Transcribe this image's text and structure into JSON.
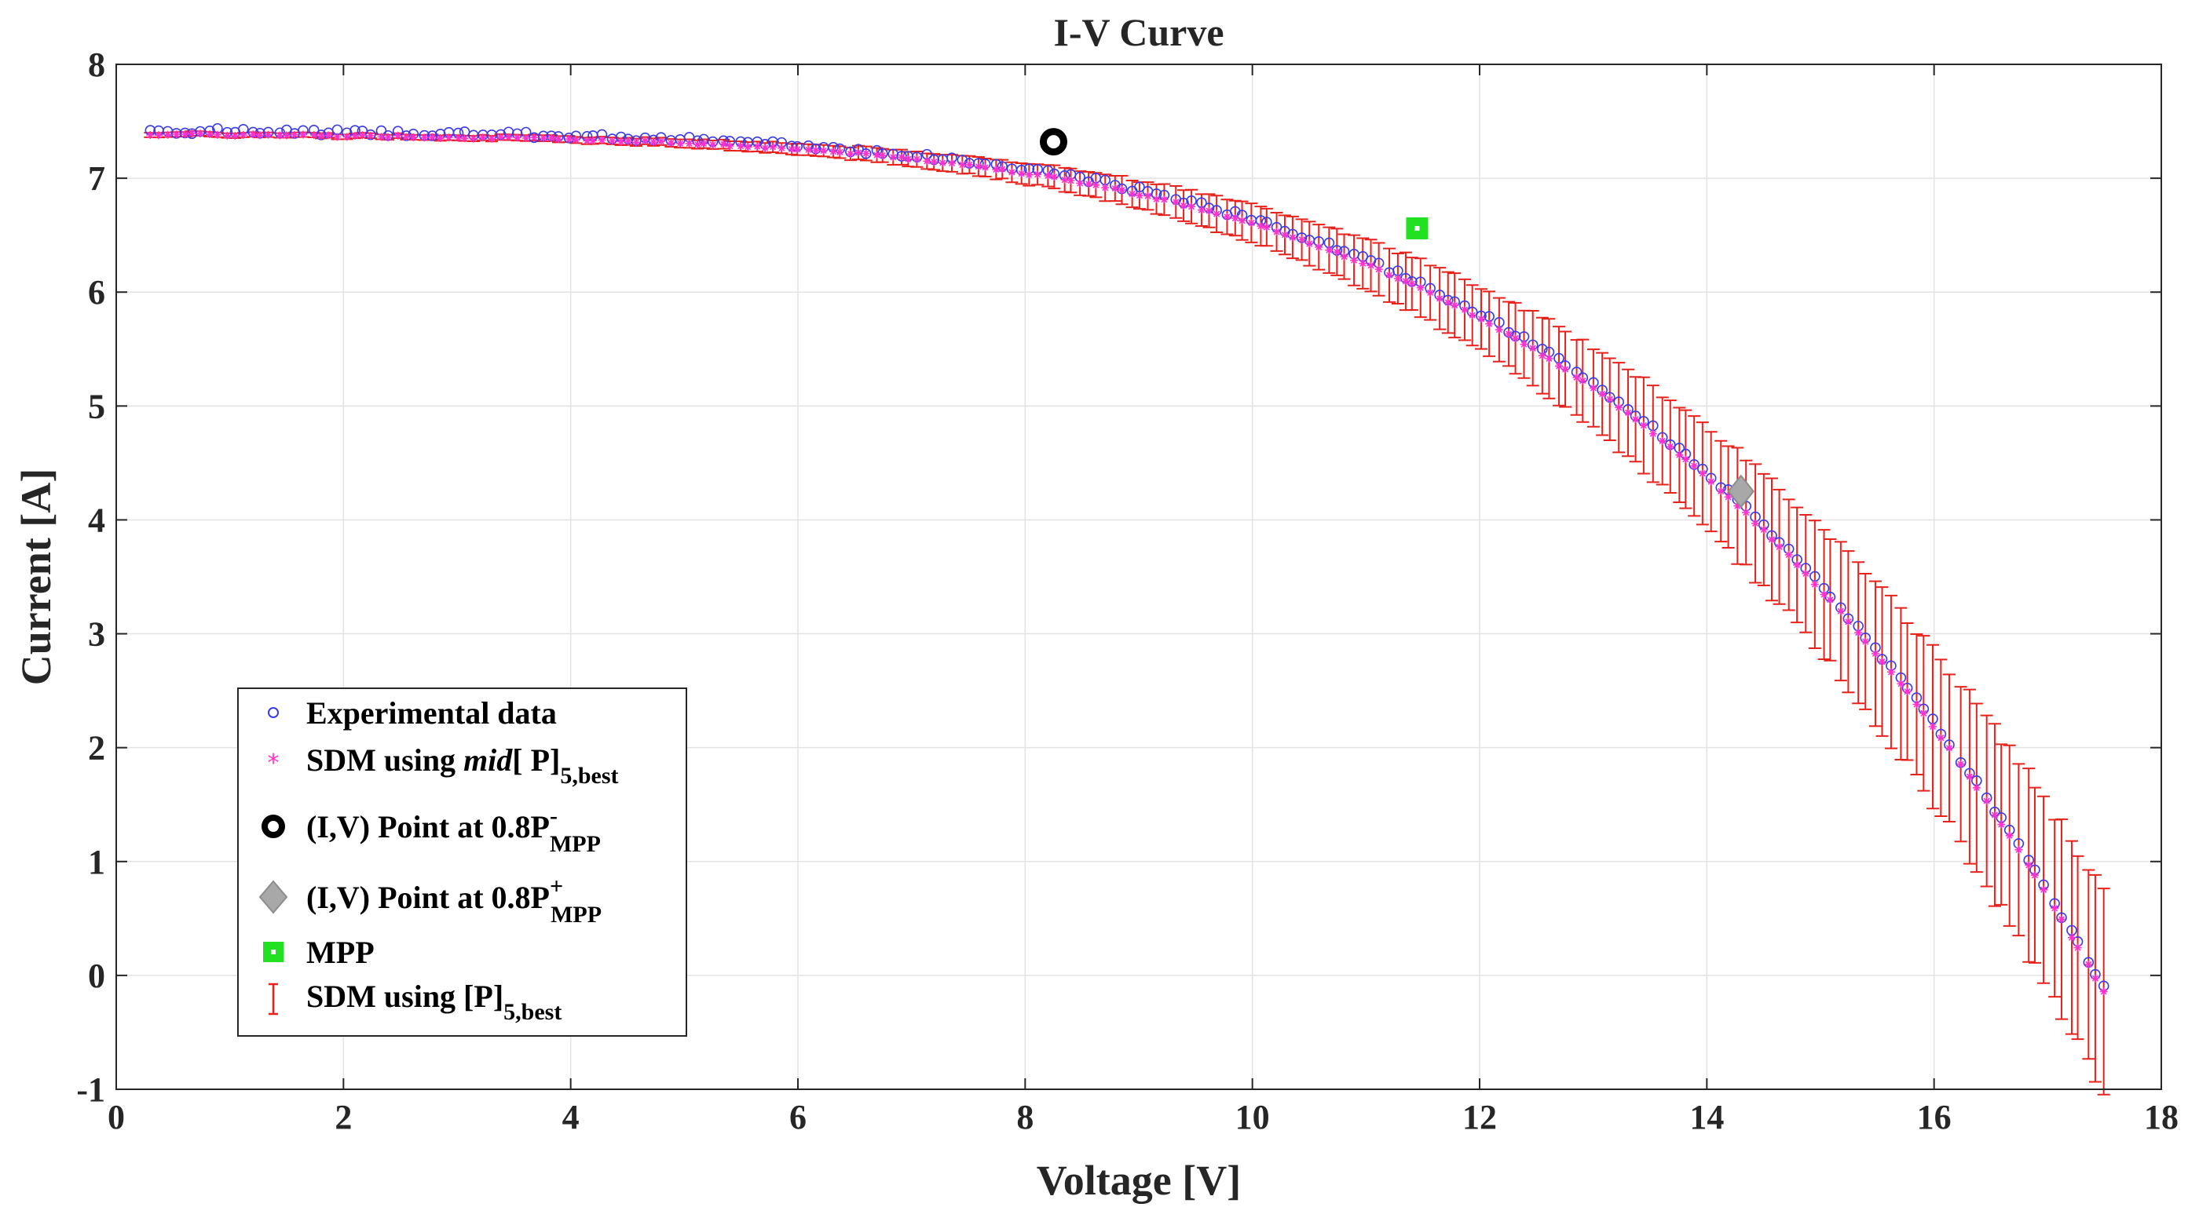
{
  "chart_data": {
    "type": "scatter",
    "title": "I-V Curve",
    "xlabel": "Voltage [V]",
    "ylabel": "Current [A]",
    "xlim": [
      0,
      18
    ],
    "ylim": [
      -1,
      8
    ],
    "xticks": [
      0,
      2,
      4,
      6,
      8,
      10,
      12,
      14,
      16,
      18
    ],
    "yticks": [
      -1,
      0,
      1,
      2,
      3,
      4,
      5,
      6,
      7,
      8
    ],
    "grid": true,
    "legend_position": "bottom-left",
    "model": {
      "Isc": 7.4,
      "Voc": 17.5,
      "shape_exponent": 4.2,
      "knee": 0.15
    },
    "series": [
      {
        "name": "Experimental data",
        "marker": "circle-open",
        "color": "#3a3ae8",
        "voltage_range": [
          0.3,
          17.5
        ],
        "count": 230
      },
      {
        "name": "SDM using mid[ P]5,best",
        "marker": "asterisk",
        "color": "#ff33cc",
        "voltage_range": [
          0.3,
          17.5
        ],
        "count": 230
      },
      {
        "name": "SDM using [P]5,best",
        "marker": "errorbar",
        "color": "#e8211b",
        "voltage_range": [
          0.3,
          17.5
        ],
        "count": 230,
        "max_error": 0.9
      }
    ],
    "key_points": [
      {
        "name": "(I,V) Point at 0.8P-MPP",
        "x": 8.25,
        "y": 7.32,
        "marker": "ring",
        "color": "#000000"
      },
      {
        "name": "MPP",
        "x": 11.45,
        "y": 6.56,
        "marker": "square",
        "color": "#22e022"
      },
      {
        "name": "(I,V) Point at 0.8P+MPP",
        "x": 14.3,
        "y": 4.25,
        "marker": "diamond",
        "color": "#999999"
      }
    ],
    "legend": {
      "experimental": "Experimental data",
      "sdm_mid_pre": "SDM using ",
      "sdm_mid_italic": "mid",
      "sdm_mid_post": "[ P]",
      "sdm_mid_sub": "5,best",
      "pt_minus_pre": "(I,V) Point at 0.8P",
      "pt_minus_sup": "-",
      "pt_minus_sub": "MPP",
      "pt_plus_pre": "(I,V) Point at 0.8P",
      "pt_plus_sup": "+",
      "pt_plus_sub": "MPP",
      "mpp": "MPP",
      "sdm_best_pre": "SDM using [P]",
      "sdm_best_sub": "5,best"
    }
  }
}
